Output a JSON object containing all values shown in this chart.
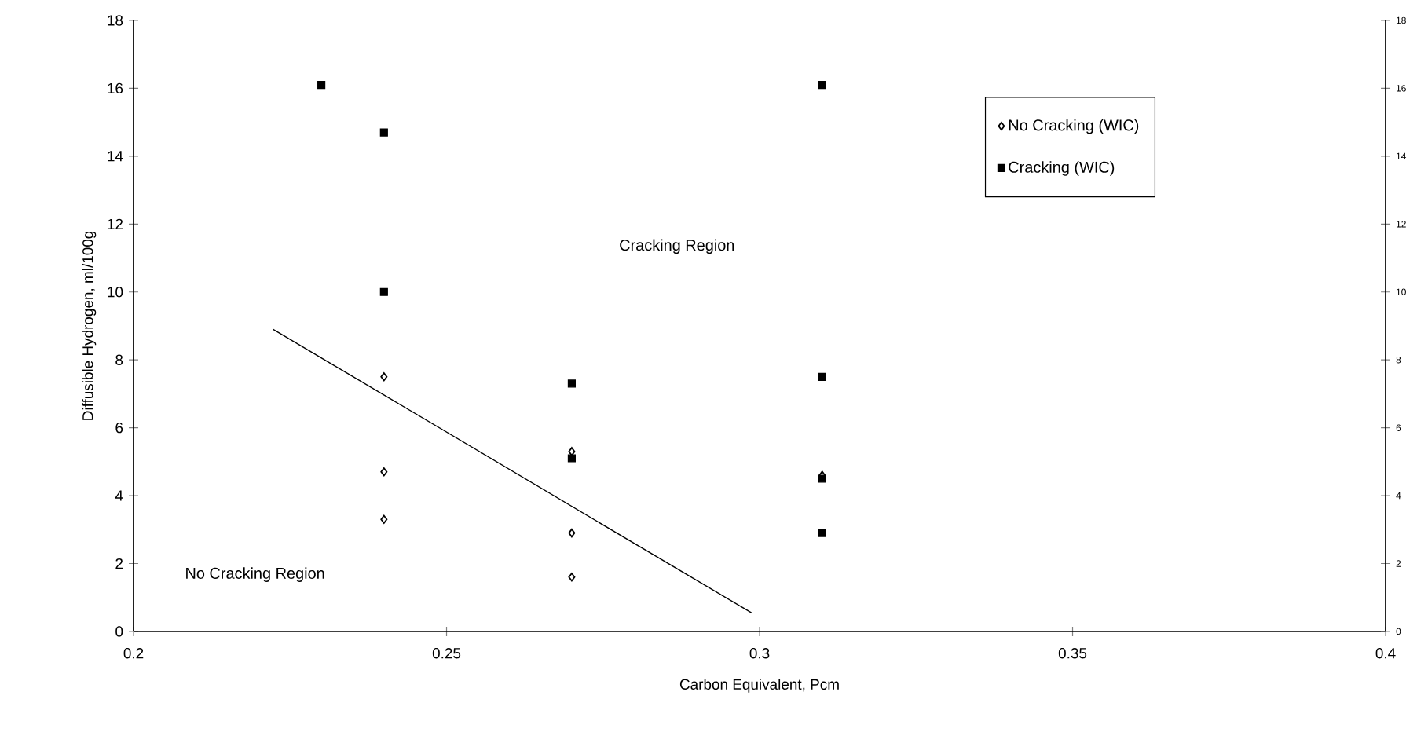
{
  "chart_data": {
    "type": "scatter",
    "xlabel": "Carbon Equivalent, Pcm",
    "ylabel": "Diffusible Hydrogen, ml/100g",
    "xlim": [
      0.2,
      0.4
    ],
    "xticks": [
      0.2,
      0.25,
      0.3,
      0.35,
      0.4
    ],
    "ylim": [
      0,
      18
    ],
    "yticks": [
      0,
      2,
      4,
      6,
      8,
      10,
      12,
      14,
      16,
      18
    ],
    "y2lim": [
      0,
      18
    ],
    "y2ticks": [
      0,
      2,
      4,
      6,
      8,
      10,
      12,
      14,
      16,
      18
    ],
    "legend": "top right",
    "grid": false,
    "series": [
      {
        "name": "No Cracking (WIC)",
        "color": "#000000",
        "marker": "diamond",
        "x": [
          0.24,
          0.24,
          0.24,
          0.27,
          0.27,
          0.27,
          0.31
        ],
        "values": [
          7.5,
          4.7,
          3.3,
          5.3,
          2.9,
          1.6,
          4.6
        ]
      },
      {
        "name": "Cracking (WIC)",
        "color": "#000000",
        "marker": "square",
        "x": [
          0.23,
          0.24,
          0.24,
          0.27,
          0.27,
          0.31,
          0.31,
          0.31,
          0.31
        ],
        "values": [
          16.1,
          14.7,
          10.0,
          7.3,
          5.1,
          16.1,
          7.5,
          4.5,
          2.9
        ]
      },
      {
        "type": "line",
        "color": "#000000",
        "marker": "none",
        "line_style": "solid",
        "x": [
          0.2223,
          0.2987
        ],
        "values": [
          8.9,
          0.55
        ]
      }
    ],
    "annotations": [
      "Cracking Region",
      "No Cracking Region"
    ]
  }
}
